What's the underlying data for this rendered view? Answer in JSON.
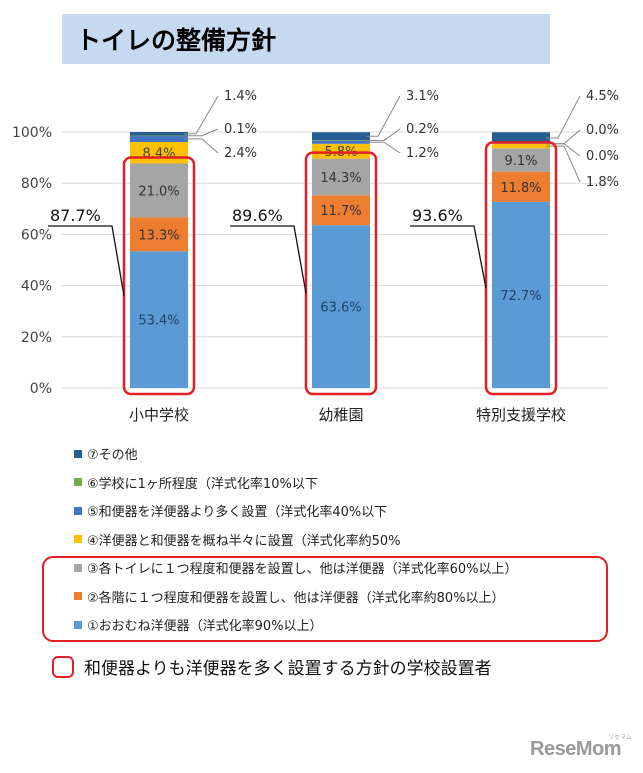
{
  "title": "トイレの整備方針",
  "colors": {
    "title_bg": "#c5d9f1",
    "highlight": "#e31e24",
    "s1": "#5b9bd5",
    "s2": "#ed7d31",
    "s3": "#a5a5a5",
    "s4": "#ffc000",
    "s5": "#4472c4",
    "s6": "#70ad47",
    "s7": "#255e91"
  },
  "chart_data": {
    "type": "bar",
    "stacked": true,
    "categories": [
      "小中学校",
      "幼稚園",
      "特別支援学校"
    ],
    "y_ticks": [
      "0%",
      "20%",
      "40%",
      "60%",
      "80%",
      "100%"
    ],
    "ylim": [
      0,
      100
    ],
    "grid": true,
    "series": [
      {
        "name": "①おおむね洋便器（洋式化率90%以上）",
        "values": [
          53.4,
          63.6,
          72.7
        ],
        "labels": [
          "53.4%",
          "63.6%",
          "72.7%"
        ]
      },
      {
        "name": "②各階に１つ程度和便器を設置し、他は洋便器（洋式化率約80%以上）",
        "values": [
          13.3,
          11.7,
          11.8
        ],
        "labels": [
          "13.3%",
          "11.7%",
          "11.8%"
        ]
      },
      {
        "name": "③各トイレに１つ程度和便器を設置し、他は洋便器（洋式化率60%以上）",
        "values": [
          21.0,
          14.3,
          9.1
        ],
        "labels": [
          "21.0%",
          "14.3%",
          "9.1%"
        ]
      },
      {
        "name": "④洋便器と和便器を概ね半々に設置（洋式化率約50%",
        "values": [
          8.4,
          5.8,
          1.8
        ],
        "labels": [
          "8.4%",
          "5.8%",
          "1.8%"
        ]
      },
      {
        "name": "⑤和便器を洋便器より多く設置（洋式化率40%以下",
        "values": [
          2.4,
          1.2,
          0.0
        ],
        "labels": [
          "2.4%",
          "1.2%",
          "0.0%"
        ]
      },
      {
        "name": "⑥学校に1ヶ所程度（洋式化率10%以下",
        "values": [
          0.1,
          0.2,
          0.0
        ],
        "labels": [
          "0.1%",
          "0.2%",
          "0.0%"
        ]
      },
      {
        "name": "⑦その他",
        "values": [
          1.4,
          3.1,
          4.5
        ],
        "labels": [
          "1.4%",
          "3.1%",
          "4.5%"
        ]
      }
    ],
    "highlight_totals": [
      "87.7%",
      "89.6%",
      "93.6%"
    ]
  },
  "legend_order": [
    6,
    5,
    4,
    3,
    2,
    1,
    0
  ],
  "note": "和便器よりも洋便器を多く設置する方針の学校設置者",
  "logo": "ReseMom",
  "logo_sub": "リセマム"
}
